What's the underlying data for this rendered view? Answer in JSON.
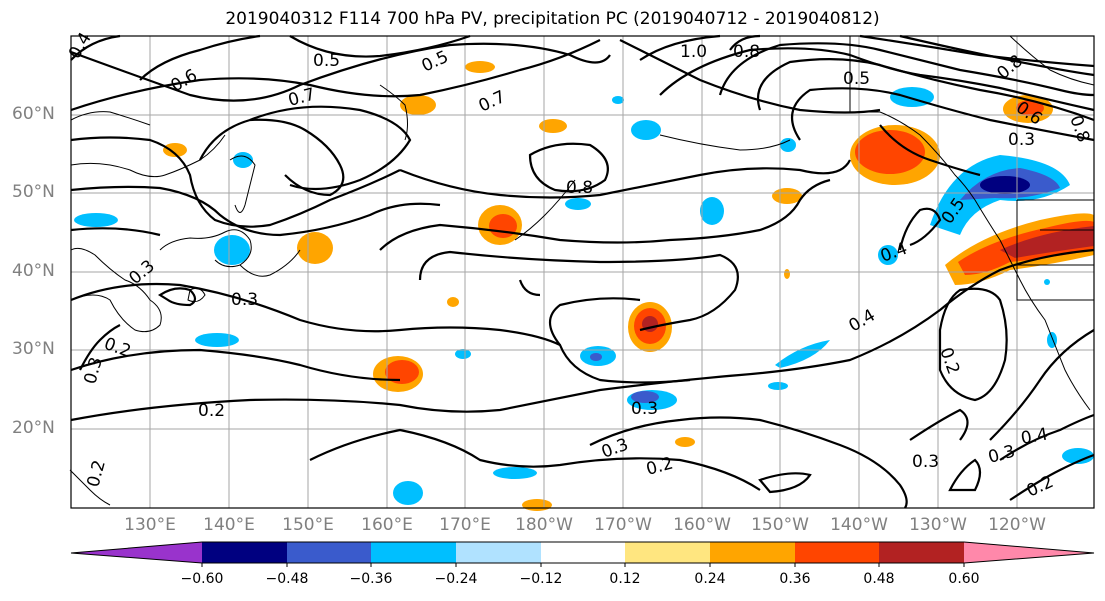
{
  "title": "2019040312 F114 700 hPa PV, precipitation PC (2019040712 - 2019040812)",
  "lat_labels": [
    "60°N",
    "50°N",
    "40°N",
    "30°N",
    "20°N"
  ],
  "lon_labels": [
    "130°E",
    "140°E",
    "150°E",
    "160°E",
    "170°E",
    "180°W",
    "170°W",
    "160°W",
    "150°W",
    "140°W",
    "130°W",
    "120°W"
  ],
  "colorbar": {
    "ticks": [
      "−0.60",
      "−0.48",
      "−0.36",
      "−0.24",
      "−0.12",
      "0.12",
      "0.24",
      "0.36",
      "0.48",
      "0.60"
    ],
    "colors": [
      "#9933cc",
      "#000080",
      "#3a5bcc",
      "#00bfff",
      "#b0e2ff",
      "#ffffff",
      "#ffe680",
      "#ffa500",
      "#ff4500",
      "#b22222",
      "#ff88aa"
    ]
  },
  "contour_labels": [
    "0.4",
    "0.5",
    "0.5",
    "1.0",
    "0.8",
    "0.5",
    "0.8",
    "0.8",
    "0.6",
    "0.7",
    "0.7",
    "0.6",
    "0.8",
    "0.3",
    "0.5",
    "0.4",
    "0.3",
    "0.3",
    "0.2",
    "0.3",
    "0.2",
    "0.4",
    "0.3",
    "0.2",
    "0.2",
    "0.3",
    "0.3",
    "0.2",
    "0.4",
    "0.3",
    "0.2"
  ]
}
